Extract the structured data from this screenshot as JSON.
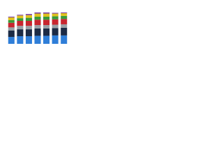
{
  "chart_data": {
    "type": "bar",
    "stacked": true,
    "categories": [
      null,
      null,
      null,
      null,
      null,
      null,
      null
    ],
    "ylim": [
      0,
      100
    ],
    "series": [
      {
        "color": "#2f7ed8",
        "values": [
          18,
          20,
          20,
          21,
          21,
          22,
          22
        ]
      },
      {
        "color": "#1c2b45",
        "values": [
          17,
          18,
          18,
          19,
          19,
          19,
          20
        ]
      },
      {
        "color": "#9aa0a6",
        "values": [
          8,
          9,
          9,
          9,
          9,
          9,
          9
        ]
      },
      {
        "color": "#c8262f",
        "values": [
          12,
          13,
          13,
          14,
          14,
          14,
          14
        ]
      },
      {
        "color": "#3a9a3a",
        "values": [
          7,
          7,
          8,
          8,
          8,
          8,
          8
        ]
      },
      {
        "color": "#e0c21c",
        "values": [
          7,
          7,
          7,
          8,
          8,
          7,
          7
        ]
      },
      {
        "color": "#7b3fa0",
        "values": [
          2,
          2,
          3,
          3,
          3,
          2,
          2
        ]
      }
    ]
  }
}
